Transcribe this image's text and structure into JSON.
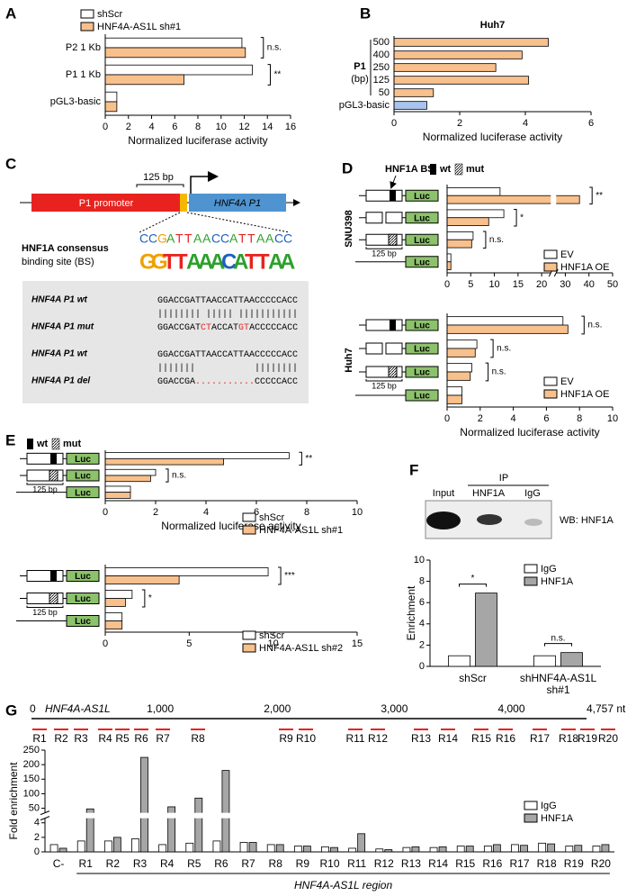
{
  "panel_labels": [
    "A",
    "B",
    "C",
    "D",
    "E",
    "F",
    "G"
  ],
  "construct": {
    "luc": "Luc",
    "scale": "125 bp",
    "bs": "HNF1A BS",
    "wt": "wt",
    "mut": "mut"
  },
  "panel_c": {
    "bp": "125 bp",
    "promoter": "P1 promoter",
    "gene": "HNF4A P1",
    "consensus": [
      "C",
      "C",
      "G",
      "A",
      "T",
      "T",
      "A",
      "A",
      "C",
      "C",
      "A",
      "T",
      "T",
      "A",
      "A",
      "C",
      "C"
    ],
    "logo": [
      "G",
      "G",
      "T",
      "T",
      "A",
      "A",
      "A",
      "C",
      "A",
      "T",
      "T",
      "A",
      "A"
    ],
    "site": [
      "HNF1A consensus",
      "binding site (BS)"
    ],
    "rows": [
      {
        "label": "HNF4A P1 wt",
        "seq": [
          "GGACCGATTAACCATTAACCCCCACC"
        ]
      },
      {
        "label": "",
        "seq": [
          "|||||||| ||||| |||||||||||"
        ]
      },
      {
        "label": "HNF4A P1 mut",
        "seq": [
          "GGACCGAT",
          "CT",
          "ACCAT",
          "GT",
          "ACCCCCACC"
        ]
      },
      {
        "label": "HNF4A P1 wt",
        "seq": [
          "GGACCGATTAACCATTAACCCCCACC"
        ]
      },
      {
        "label": "",
        "seq": [
          "|||||||           ||||||||"
        ]
      },
      {
        "label": "HNF4A P1 del",
        "seq": [
          "GGACCGA",
          "...........",
          "CCCCCACC"
        ]
      }
    ]
  },
  "panel_f_blot": {
    "ip": "IP",
    "lanes": [
      "Input",
      "HNF1A",
      "IgG"
    ],
    "wb": "WB: HNF1A"
  },
  "panel_g_map": {
    "name": "HNF4A-AS1L",
    "xlim": [
      0,
      4757
    ],
    "xticks": [
      0,
      {
        "value": 1000,
        "label": "1,000"
      },
      {
        "value": 2000,
        "label": "2,000"
      },
      {
        "value": 3000,
        "label": "3,000"
      },
      {
        "value": 4000,
        "label": "4,000"
      },
      {
        "value": 4757,
        "label": "4,757 nt"
      }
    ],
    "regions": [
      "R1",
      "R2",
      "R3",
      "R4",
      "R5",
      "R6",
      "R7",
      "R8",
      "R9",
      "R10",
      "R11",
      "R12",
      "R13",
      "R14",
      "R15",
      "R16",
      "R17",
      "R18",
      "R19",
      "R20"
    ]
  },
  "chart_data": [
    {
      "type": "bar",
      "orientation": "horizontal",
      "categories": [
        "P2 1 Kb",
        "P1 1 Kb",
        "pGL3-basic"
      ],
      "series": [
        {
          "name": "shScr",
          "color": "#ffffff",
          "values": [
            11.8,
            12.7,
            1.0
          ]
        },
        {
          "name": "HNF4A-AS1L sh#1",
          "color": "#f8c08c",
          "values": [
            12.1,
            6.8,
            1.0
          ]
        }
      ],
      "xlim": [
        0,
        16
      ],
      "xticks": [
        0,
        2,
        4,
        6,
        8,
        10,
        12,
        14,
        16
      ],
      "xlabel": "Normalized luciferase activity",
      "annotations": [
        "n.s.",
        "**",
        null
      ]
    },
    {
      "type": "bar",
      "orientation": "horizontal",
      "title": "Huh7",
      "group_label": "P1",
      "group_unit": "(bp)",
      "categories": [
        "500",
        "400",
        "250",
        "125",
        "50",
        "pGL3-basic"
      ],
      "values": [
        4.7,
        3.9,
        3.1,
        4.1,
        1.2,
        1.0
      ],
      "colors": [
        "#f8c08c",
        "#f8c08c",
        "#f8c08c",
        "#f8c08c",
        "#f8c08c",
        "#a9c4ec"
      ],
      "xlim": [
        0,
        6
      ],
      "xticks": [
        0,
        2,
        4,
        6
      ],
      "xlabel": "Normalized luciferase activity"
    },
    {
      "type": "bar",
      "orientation": "horizontal",
      "title": "SNU398",
      "xscale": "broken",
      "series": [
        {
          "name": "EV",
          "color": "#ffffff",
          "values": [
            11.2,
            12.0,
            5.5,
            0.8
          ]
        },
        {
          "name": "HNF1A OE",
          "color": "#f8c08c",
          "values": [
            36,
            8.8,
            5.2,
            0.8
          ]
        }
      ],
      "xlim": [
        0,
        50
      ],
      "xticks": [
        0,
        5,
        10,
        15,
        20,
        30,
        40,
        50
      ],
      "annotations": [
        "**",
        "*",
        "n.s.",
        null
      ]
    },
    {
      "type": "bar",
      "orientation": "horizontal",
      "title": "Huh7",
      "series": [
        {
          "name": "EV",
          "color": "#ffffff",
          "values": [
            7.0,
            1.8,
            1.5,
            0.9
          ]
        },
        {
          "name": "HNF1A OE",
          "color": "#f8c08c",
          "values": [
            7.3,
            1.7,
            1.4,
            0.9
          ]
        }
      ],
      "xlim": [
        0,
        10
      ],
      "xticks": [
        0,
        2,
        4,
        6,
        8,
        10
      ],
      "xlabel": "Normalized luciferase activity",
      "annotations": [
        "n.s.",
        "n.s.",
        "n.s.",
        null
      ]
    },
    {
      "type": "bar",
      "orientation": "horizontal",
      "series": [
        {
          "name": "shScr",
          "color": "#ffffff",
          "values": [
            7.3,
            2.0,
            1.0
          ]
        },
        {
          "name": "HNF4A-AS1L sh#1",
          "color": "#f8c08c",
          "values": [
            4.7,
            1.8,
            1.0
          ]
        }
      ],
      "xlim": [
        0,
        10
      ],
      "xticks": [
        0,
        2,
        4,
        6,
        8,
        10
      ],
      "xlabel": "Normalized luciferase activity",
      "annotations": [
        "**",
        "n.s.",
        null
      ]
    },
    {
      "type": "bar",
      "orientation": "horizontal",
      "series": [
        {
          "name": "shScr",
          "color": "#ffffff",
          "values": [
            9.7,
            1.6,
            1.0
          ]
        },
        {
          "name": "HNF4A-AS1L sh#2",
          "color": "#f8c08c",
          "values": [
            4.4,
            1.2,
            1.0
          ]
        }
      ],
      "xlim": [
        0,
        15
      ],
      "xticks": [
        0,
        5,
        10,
        15
      ],
      "annotations": [
        "***",
        "*",
        null
      ]
    },
    {
      "type": "bar",
      "orientation": "vertical",
      "categories": [
        [
          "shScr"
        ],
        [
          "shHNF4A-AS1L",
          "sh#1"
        ]
      ],
      "series": [
        {
          "name": "IgG",
          "color": "#ffffff",
          "values": [
            1.0,
            1.0
          ]
        },
        {
          "name": "HNF1A",
          "color": "#a6a6a6",
          "values": [
            6.9,
            1.3
          ]
        }
      ],
      "ylim": [
        0,
        10
      ],
      "yticks": [
        0,
        2,
        4,
        6,
        8,
        10
      ],
      "ylabel": "Enrichment",
      "annotations": [
        "*",
        "n.s."
      ]
    },
    {
      "type": "bar",
      "orientation": "vertical",
      "yscale": "broken",
      "categories": [
        "C-",
        "R1",
        "R2",
        "R3",
        "R4",
        "R5",
        "R6",
        "R7",
        "R8",
        "R9",
        "R10",
        "R11",
        "R12",
        "R13",
        "R14",
        "R15",
        "R16",
        "R17",
        "R18",
        "R19",
        "R20"
      ],
      "series": [
        {
          "name": "IgG",
          "color": "#ffffff",
          "values": [
            1.0,
            1.5,
            1.5,
            1.8,
            1.0,
            1.2,
            1.5,
            1.3,
            1.0,
            0.8,
            0.7,
            0.5,
            0.4,
            0.6,
            0.6,
            0.8,
            0.8,
            1.0,
            1.2,
            0.8,
            0.8
          ]
        },
        {
          "name": "HNF1A",
          "color": "#a6a6a6",
          "values": [
            0.5,
            48,
            2.0,
            225,
            55,
            85,
            180,
            1.3,
            1.0,
            0.8,
            0.6,
            2.5,
            0.3,
            0.7,
            0.7,
            0.8,
            1.0,
            0.9,
            1.1,
            0.9,
            1.0
          ]
        }
      ],
      "ylim": [
        0,
        250
      ],
      "yticks": [
        0,
        2,
        4,
        50,
        100,
        150,
        200,
        250
      ],
      "ylabel": "Fold enrichment",
      "xlabel": "HNF4A-AS1L region"
    }
  ]
}
